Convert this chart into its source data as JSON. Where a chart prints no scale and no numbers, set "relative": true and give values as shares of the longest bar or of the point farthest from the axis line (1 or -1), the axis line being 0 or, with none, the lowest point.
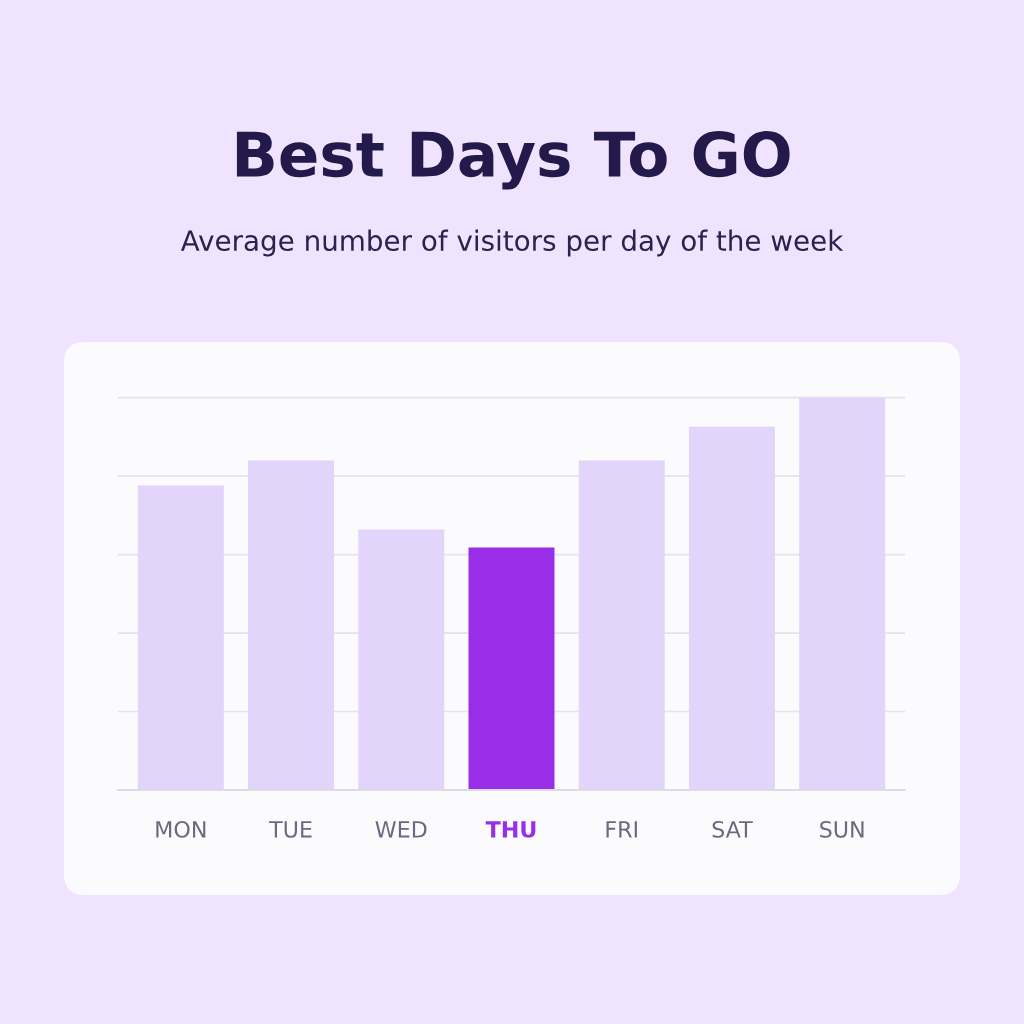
{
  "chart_data": {
    "type": "bar",
    "title": "Best Days To GO",
    "subtitle": "Average number of visitors per day of the week",
    "categories": [
      "MON",
      "TUE",
      "WED",
      "THU",
      "FRI",
      "SAT",
      "SUN"
    ],
    "values": [
      0.776,
      0.84,
      0.664,
      0.618,
      0.84,
      0.926,
      1
    ],
    "colors": [
      "#e2d4fa",
      "#e2d4fa",
      "#e2d4fa",
      "#9a2ee8",
      "#e2d4fa",
      "#e2d4fa",
      "#e2d4fa"
    ],
    "relative": true,
    "grid": "y",
    "legend": false
  }
}
